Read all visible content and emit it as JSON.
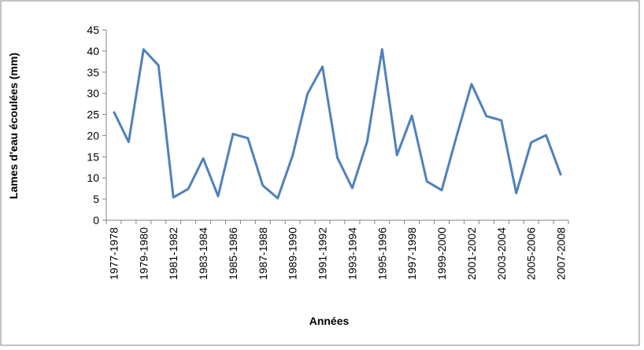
{
  "chart_data": {
    "type": "line",
    "x_label": "Années",
    "y_label": "Lames d'eau écoulées (mm)",
    "categories": [
      "1977-1978",
      null,
      "1979-1980",
      null,
      "1981-1982",
      null,
      "1983-1984",
      null,
      "1985-1986",
      null,
      "1987-1988",
      null,
      "1989-1990",
      null,
      "1991-1992",
      null,
      "1993-1994",
      null,
      "1995-1996",
      null,
      "1997-1998",
      null,
      "1999-2000",
      null,
      "2001-2002",
      null,
      "2003-2004",
      null,
      "2005-2006",
      null,
      "2007-2008"
    ],
    "values": [
      25.7,
      18.5,
      40.4,
      36.6,
      5.4,
      7.4,
      14.6,
      5.7,
      20.4,
      19.4,
      8.2,
      5.2,
      15.3,
      29.9,
      36.3,
      14.8,
      7.6,
      18.6,
      40.4,
      15.4,
      24.7,
      9.2,
      7.1,
      19.9,
      32.2,
      24.6,
      23.6,
      6.4,
      18.4,
      20.1,
      10.6
    ],
    "color": "#4f81bd",
    "ylim": [
      0,
      45
    ],
    "yticks": [
      0,
      5,
      10,
      15,
      20,
      25,
      30,
      35,
      40,
      45
    ],
    "grid": false
  }
}
